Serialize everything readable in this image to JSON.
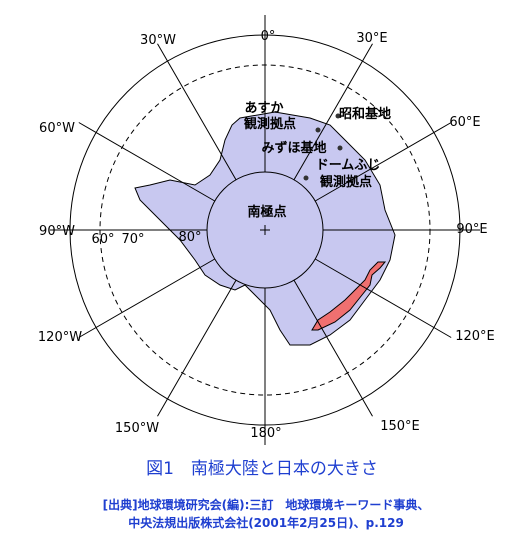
{
  "meridians": {
    "m0": "0°",
    "w30": "30°W",
    "e30": "30°E",
    "w60": "60°W",
    "e60": "60°E",
    "w90": "90°W",
    "e90": "90°E",
    "w120": "120°W",
    "e120": "120°E",
    "w150": "150°W",
    "e150": "150°E",
    "m180": "180°"
  },
  "latitudes": {
    "lat60": "60°",
    "lat70": "70°",
    "lat80": "80°"
  },
  "places": {
    "asuka": [
      "あすか",
      "観測拠点"
    ],
    "showa": "昭和基地",
    "mizuho": "みずほ基地",
    "domefuji": [
      "ドームふじ",
      "観測拠点"
    ],
    "pole": "南極点"
  },
  "caption": "図1　南極大陸と日本の大きさ",
  "source": [
    "[出典]地球環境研究会(編):三訂　地球環境キーワード事典、",
    "中央法規出版株式会社(2001年2月25日)、p.129"
  ]
}
